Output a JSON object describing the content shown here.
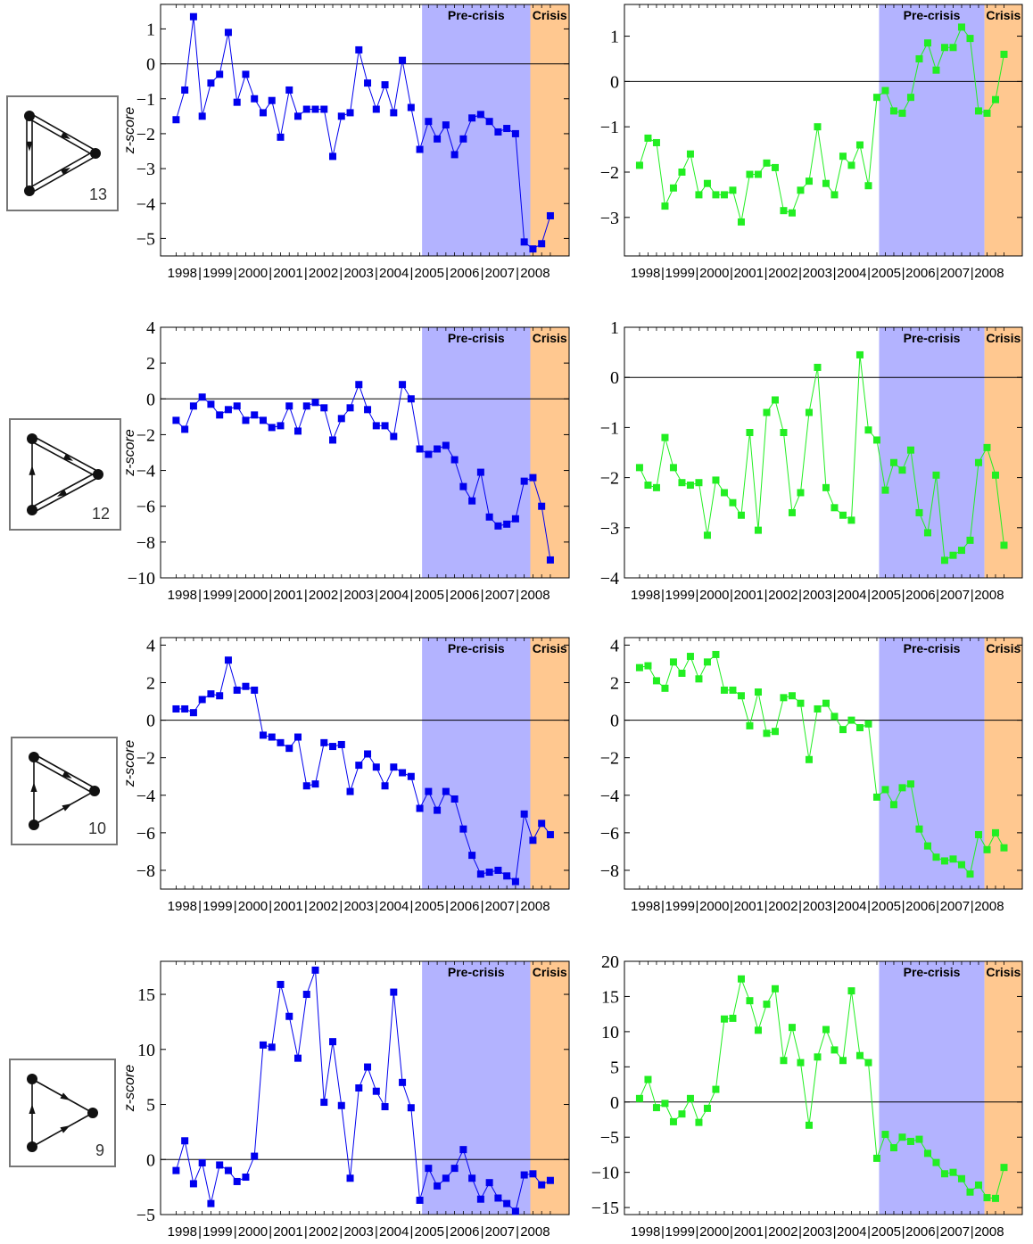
{
  "figure": {
    "years": [
      "1998",
      "1999",
      "2000",
      "2001",
      "2002",
      "2003",
      "2004",
      "2005",
      "2006",
      "2007",
      "2008"
    ],
    "separator": "|",
    "band_labels": {
      "pre_crisis": "Pre-crisis",
      "crisis": "Crisis"
    },
    "colors": {
      "blue_series": "#0000ee",
      "green_series": "#22ee22",
      "pre_crisis_band": "#b3b3ff",
      "crisis_band": "#ffc890"
    }
  },
  "rows": [
    {
      "motif_number": "13",
      "ylabel": "z-score"
    },
    {
      "motif_number": "12",
      "ylabel": "z-score"
    },
    {
      "motif_number": "10",
      "ylabel": "z-score"
    },
    {
      "motif_number": "9",
      "ylabel": "z-score"
    }
  ],
  "chart_data": [
    {
      "type": "line",
      "ylim": [
        -5.5,
        1.7
      ],
      "yticks": [
        -5,
        -4,
        -3,
        -2,
        -1,
        0,
        1
      ],
      "color": "#0000ee",
      "values": [
        -1.6,
        -0.75,
        1.35,
        -1.5,
        -0.55,
        -0.3,
        0.9,
        -1.1,
        -0.3,
        -1.0,
        -1.4,
        -1.05,
        -2.1,
        -0.75,
        -1.5,
        -1.3,
        -1.3,
        -1.3,
        -2.65,
        -1.5,
        -1.4,
        0.4,
        -0.55,
        -1.3,
        -0.6,
        -1.4,
        0.1,
        -1.25,
        -2.45,
        -1.65,
        -2.15,
        -1.75,
        -2.6,
        -2.15,
        -1.55,
        -1.45,
        -1.65,
        -1.95,
        -1.85,
        -2.0,
        -5.1,
        -5.3,
        -5.15,
        -4.35
      ]
    },
    {
      "type": "line",
      "ylim": [
        -3.85,
        1.7
      ],
      "yticks": [
        -3,
        -2,
        -1,
        0,
        1
      ],
      "color": "#22ee22",
      "values": [
        -1.85,
        -1.25,
        -1.35,
        -2.75,
        -2.35,
        -2.0,
        -1.6,
        -2.5,
        -2.25,
        -2.5,
        -2.5,
        -2.4,
        -3.1,
        -2.05,
        -2.05,
        -1.8,
        -1.9,
        -2.85,
        -2.9,
        -2.4,
        -2.2,
        -1.0,
        -2.25,
        -2.5,
        -1.65,
        -1.85,
        -1.4,
        -2.3,
        -0.35,
        -0.2,
        -0.65,
        -0.7,
        -0.35,
        0.5,
        0.85,
        0.25,
        0.75,
        0.75,
        1.2,
        0.95,
        -0.65,
        -0.7,
        -0.4,
        0.6
      ]
    },
    {
      "type": "line",
      "ylim": [
        -10,
        4
      ],
      "yticks": [
        -10,
        -8,
        -6,
        -4,
        -2,
        0,
        2,
        4
      ],
      "color": "#0000ee",
      "values": [
        -1.2,
        -1.7,
        -0.4,
        0.1,
        -0.3,
        -0.9,
        -0.6,
        -0.4,
        -1.2,
        -0.9,
        -1.2,
        -1.6,
        -1.5,
        -0.4,
        -1.8,
        -0.4,
        -0.2,
        -0.5,
        -2.3,
        -1.1,
        -0.5,
        0.8,
        -0.6,
        -1.5,
        -1.5,
        -2.1,
        0.8,
        0.0,
        -2.8,
        -3.1,
        -2.8,
        -2.6,
        -3.4,
        -4.9,
        -5.7,
        -4.1,
        -6.6,
        -7.1,
        -7.0,
        -6.7,
        -4.6,
        -4.4,
        -6.0,
        -9.0
      ]
    },
    {
      "type": "line",
      "ylim": [
        -4,
        1
      ],
      "yticks": [
        -4,
        -3,
        -2,
        -1,
        0,
        1
      ],
      "color": "#22ee22",
      "values": [
        -1.8,
        -2.15,
        -2.2,
        -1.2,
        -1.8,
        -2.1,
        -2.15,
        -2.1,
        -3.15,
        -2.05,
        -2.3,
        -2.5,
        -2.75,
        -1.1,
        -3.05,
        -0.7,
        -0.45,
        -1.1,
        -2.7,
        -2.3,
        -0.7,
        0.2,
        -2.2,
        -2.6,
        -2.75,
        -2.85,
        0.45,
        -1.05,
        -1.25,
        -2.25,
        -1.7,
        -1.85,
        -1.45,
        -2.7,
        -3.1,
        -1.95,
        -3.65,
        -3.55,
        -3.45,
        -3.25,
        -1.7,
        -1.4,
        -1.95,
        -3.35
      ]
    },
    {
      "type": "line",
      "ylim": [
        -9,
        4.4
      ],
      "yticks": [
        -8,
        -6,
        -4,
        -2,
        0,
        2,
        4
      ],
      "color": "#0000ee",
      "values": [
        0.6,
        0.6,
        0.4,
        1.1,
        1.4,
        1.3,
        3.2,
        1.6,
        1.8,
        1.6,
        -0.8,
        -0.9,
        -1.2,
        -1.5,
        -0.9,
        -3.5,
        -3.4,
        -1.2,
        -1.4,
        -1.3,
        -3.8,
        -2.4,
        -1.8,
        -2.5,
        -3.5,
        -2.5,
        -2.8,
        -3.0,
        -4.7,
        -3.8,
        -4.8,
        -3.8,
        -4.2,
        -5.8,
        -7.2,
        -8.2,
        -8.1,
        -8.0,
        -8.3,
        -8.6,
        -5.0,
        -6.4,
        -5.5,
        -6.1
      ]
    },
    {
      "type": "line",
      "ylim": [
        -9,
        4.4
      ],
      "yticks": [
        -8,
        -6,
        -4,
        -2,
        0,
        2,
        4
      ],
      "color": "#22ee22",
      "values": [
        2.8,
        2.9,
        2.1,
        1.7,
        3.1,
        2.5,
        3.4,
        2.2,
        3.1,
        3.5,
        1.6,
        1.6,
        1.3,
        -0.3,
        1.5,
        -0.7,
        -0.6,
        1.2,
        1.3,
        0.9,
        -2.1,
        0.6,
        0.9,
        0.2,
        -0.5,
        0.0,
        -0.4,
        -0.2,
        -4.1,
        -3.7,
        -4.5,
        -3.6,
        -3.4,
        -5.8,
        -6.7,
        -7.3,
        -7.5,
        -7.4,
        -7.7,
        -8.2,
        -6.1,
        -6.9,
        -6.0,
        -6.8
      ]
    },
    {
      "type": "line",
      "ylim": [
        -5,
        18
      ],
      "yticks": [
        -5,
        0,
        5,
        10,
        15
      ],
      "color": "#0000ee",
      "values": [
        -1.0,
        1.7,
        -2.2,
        -0.3,
        -4.0,
        -0.5,
        -1.0,
        -2.0,
        -1.6,
        0.3,
        10.4,
        10.2,
        15.9,
        13.0,
        9.2,
        15.0,
        17.2,
        5.2,
        10.7,
        4.9,
        -1.7,
        6.5,
        8.4,
        6.2,
        4.8,
        15.2,
        7.0,
        4.7,
        -3.7,
        -0.8,
        -2.4,
        -1.7,
        -0.8,
        0.9,
        -1.7,
        -3.6,
        -2.1,
        -3.5,
        -4.0,
        -4.7,
        -1.4,
        -1.3,
        -2.3,
        -1.9
      ]
    },
    {
      "type": "line",
      "ylim": [
        -16,
        20
      ],
      "yticks": [
        -15,
        -10,
        -5,
        0,
        5,
        10,
        15,
        20
      ],
      "color": "#22ee22",
      "values": [
        0.5,
        3.2,
        -0.8,
        -0.2,
        -2.8,
        -1.7,
        0.5,
        -2.9,
        -0.9,
        1.8,
        11.8,
        11.9,
        17.5,
        14.4,
        10.2,
        13.9,
        16.1,
        5.9,
        10.6,
        5.6,
        -3.3,
        6.4,
        10.3,
        7.4,
        5.9,
        15.8,
        6.6,
        5.6,
        -8.0,
        -4.6,
        -6.5,
        -5.0,
        -5.6,
        -5.3,
        -7.3,
        -8.6,
        -10.2,
        -10.0,
        -10.9,
        -12.8,
        -11.8,
        -13.6,
        -13.7,
        -9.3
      ]
    }
  ]
}
